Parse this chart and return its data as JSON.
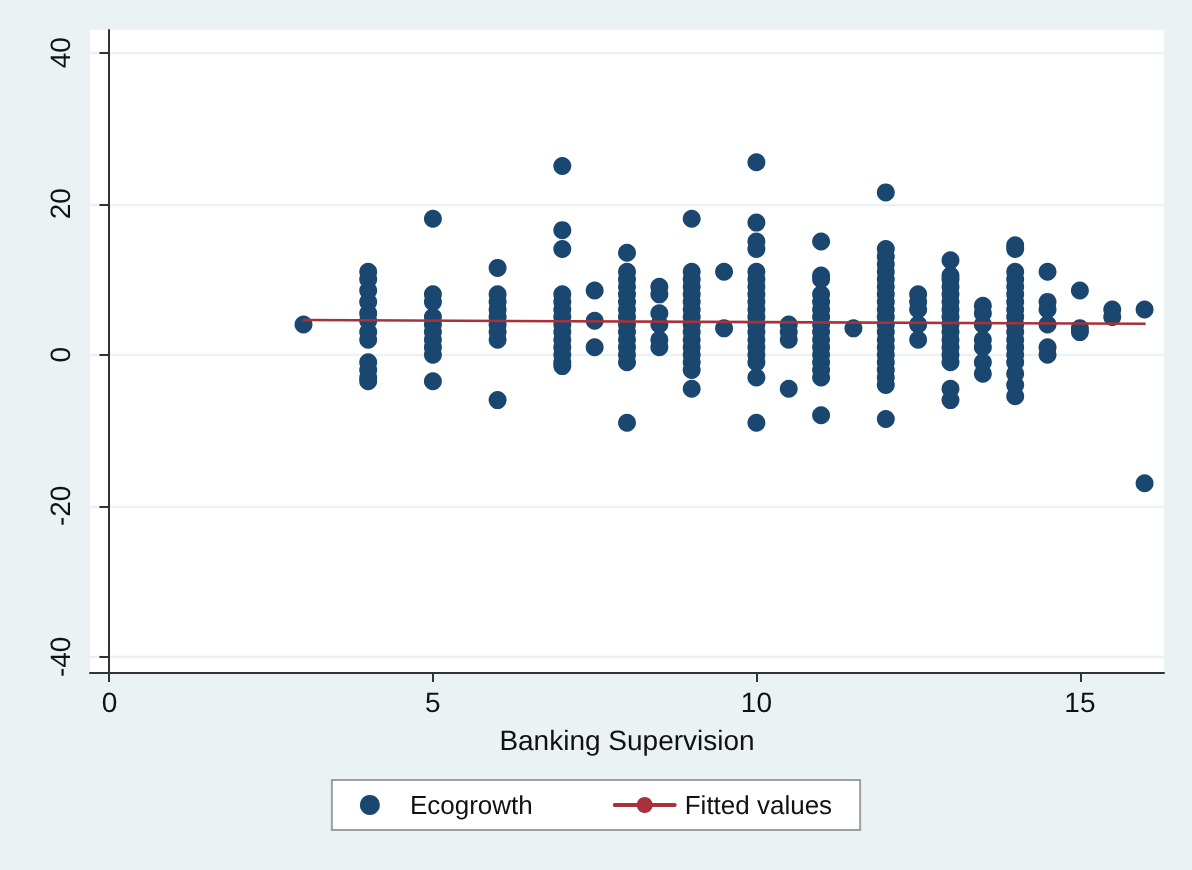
{
  "chart_data": {
    "type": "scatter",
    "xlabel": "Banking Supervision",
    "xlim": [
      -0.3,
      16.3
    ],
    "ylim": [
      -42,
      43
    ],
    "xticks": [
      0,
      5,
      10,
      15
    ],
    "yticks": [
      -40,
      -20,
      0,
      20,
      40
    ],
    "grid": "y",
    "legend": "bottom",
    "marker": "circle",
    "series": [
      {
        "name": "Ecogrowth",
        "color": "#1a476f",
        "x": [
          3,
          4,
          4,
          4,
          4,
          4,
          4,
          4,
          4,
          4,
          4,
          4,
          4,
          5,
          5,
          5,
          5,
          5,
          5,
          5,
          5,
          5,
          5,
          6,
          6,
          6,
          6,
          6,
          6,
          6,
          6,
          6,
          7,
          7,
          7,
          7,
          7,
          7,
          7,
          7,
          7,
          7,
          7,
          7,
          7,
          7,
          7.5,
          7.5,
          7.5,
          8,
          8,
          8,
          8,
          8,
          8,
          8,
          8,
          8,
          8,
          8,
          8,
          8,
          8,
          8,
          8.5,
          8.5,
          8.5,
          8.5,
          8.5,
          8.5,
          9,
          9,
          9,
          9,
          9,
          9,
          9,
          9,
          9,
          9,
          9,
          9,
          9,
          9,
          9,
          9,
          9.5,
          9.5,
          10,
          10,
          10,
          10,
          10,
          10,
          10,
          10,
          10,
          10,
          10,
          10,
          10,
          10,
          10,
          10,
          10,
          10,
          10,
          10.5,
          10.5,
          10.5,
          10.5,
          11,
          11,
          11,
          11,
          11,
          11,
          11,
          11,
          11,
          11,
          11,
          11,
          11,
          11,
          11,
          11,
          11.5,
          12,
          12,
          12,
          12,
          12,
          12,
          12,
          12,
          12,
          12,
          12,
          12,
          12,
          12,
          12,
          12,
          12,
          12,
          12,
          12,
          12,
          12.5,
          12.5,
          12.5,
          12.5,
          12.5,
          13,
          13,
          13,
          13,
          13,
          13,
          13,
          13,
          13,
          13,
          13,
          13,
          13,
          13,
          13,
          13,
          13.5,
          13.5,
          13.5,
          13.5,
          13.5,
          13.5,
          13.5,
          14,
          14,
          14,
          14,
          14,
          14,
          14,
          14,
          14,
          14,
          14,
          14,
          14,
          14,
          14,
          14,
          14,
          14,
          14.5,
          14.5,
          14.5,
          14.5,
          14.5,
          14.5,
          15,
          15,
          15,
          15.5,
          15.5,
          16,
          16
        ],
        "values": [
          4,
          11,
          10,
          8.5,
          7,
          5.5,
          4.5,
          3,
          2,
          -1,
          -2,
          -3,
          -3.5,
          18,
          8,
          7,
          5,
          4,
          3,
          2,
          1,
          0,
          -3.5,
          11.5,
          8,
          7,
          6,
          5,
          4,
          3,
          2,
          -6,
          25,
          16.5,
          14,
          8,
          7,
          6,
          5,
          4,
          3,
          2,
          1,
          0,
          -1,
          -1.5,
          8.5,
          4.5,
          1,
          13.5,
          11,
          10,
          9,
          8,
          7,
          6,
          5,
          4,
          3,
          2,
          1,
          0,
          -1,
          -9,
          9,
          8,
          5.5,
          4,
          2,
          1,
          18,
          11,
          10,
          9,
          8,
          7,
          6,
          5,
          4,
          3,
          2,
          1,
          0,
          -1,
          -2,
          -4.5,
          11,
          3.5,
          25.5,
          17.5,
          15,
          14,
          11,
          10,
          9,
          8,
          7,
          6,
          5,
          4,
          3,
          2,
          1,
          0,
          -1,
          -3,
          -9,
          4,
          3,
          2,
          -4.5,
          15,
          10.5,
          10,
          8,
          7,
          6,
          5,
          4,
          3,
          2,
          1,
          0,
          -1,
          -2,
          -3,
          -8,
          3.5,
          21.5,
          14,
          13,
          12,
          11,
          10,
          9,
          8,
          7,
          6,
          5,
          4,
          3,
          2,
          1,
          0,
          -1,
          -2,
          -3,
          -4,
          -8.5,
          8,
          7,
          6,
          4,
          2,
          12.5,
          10.5,
          10,
          9,
          8,
          7,
          6,
          5,
          4,
          3,
          2,
          1,
          0,
          -1,
          -4.5,
          -6,
          6.5,
          5.5,
          4,
          2,
          1,
          -1,
          -2.5,
          14.5,
          14,
          11,
          10,
          9,
          8,
          7,
          6,
          5,
          4,
          3,
          2,
          1,
          0,
          -1,
          -2.5,
          -4,
          -5.5,
          11,
          7,
          6,
          4,
          1,
          0,
          8.5,
          3.5,
          3,
          6,
          5,
          6,
          -17
        ]
      },
      {
        "name": "Fitted values",
        "type": "line",
        "color": "#a8323a",
        "marker": "none",
        "x": [
          3,
          16
        ],
        "values": [
          4.6,
          4.1
        ]
      }
    ]
  }
}
